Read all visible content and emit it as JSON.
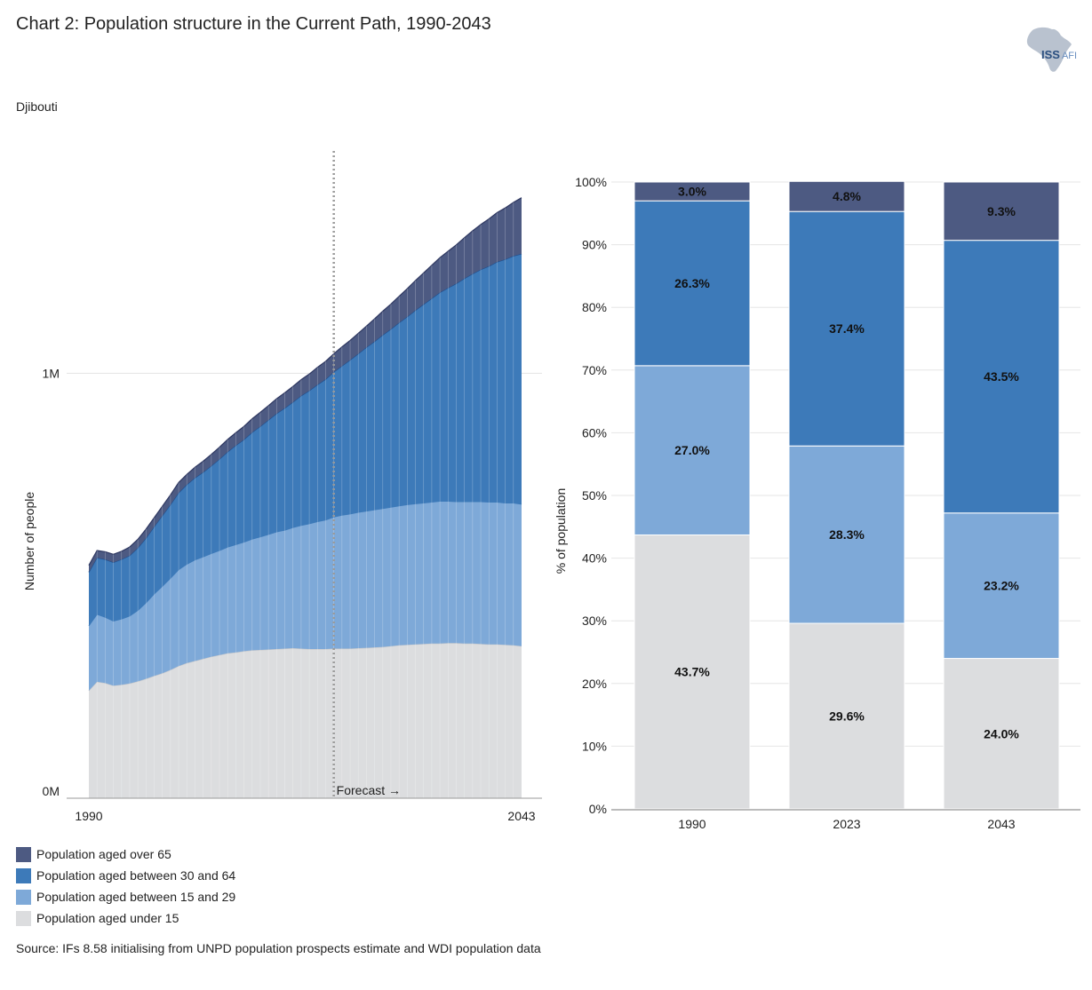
{
  "header": {
    "title": "Chart 2: Population structure in the Current Path, 1990-2043",
    "subtitle": "Djibouti",
    "logo_text": "ISS",
    "logo_suffix": "AFI"
  },
  "colors": {
    "over65": "#4d5a82",
    "age30_64": "#3d7ab9",
    "age15_29": "#7ea9d8",
    "under15": "#dcdddf"
  },
  "legend": [
    {
      "label": "Population aged over 65",
      "color": "#4d5a82"
    },
    {
      "label": "Population aged between 30 and 64",
      "color": "#3d7ab9"
    },
    {
      "label": "Population aged between 15 and 29",
      "color": "#7ea9d8"
    },
    {
      "label": "Population aged under 15",
      "color": "#dcdddf"
    }
  ],
  "source": "Source: IFs 8.58 initialising from UNPD population prospects estimate and WDI population data",
  "chart_data": [
    {
      "type": "area",
      "stacked": true,
      "ylabel": "Number of people",
      "y_ticks": [
        "0M",
        "1M"
      ],
      "x_tick_labels": [
        "1990",
        "2043"
      ],
      "ylim": [
        0,
        1450000
      ],
      "forecast_start_year": 2020,
      "forecast_label": "Forecast →",
      "x": [
        1990,
        1991,
        1992,
        1993,
        1994,
        1995,
        1996,
        1997,
        1998,
        1999,
        2000,
        2001,
        2002,
        2003,
        2004,
        2005,
        2006,
        2007,
        2008,
        2009,
        2010,
        2011,
        2012,
        2013,
        2014,
        2015,
        2016,
        2017,
        2018,
        2019,
        2020,
        2021,
        2022,
        2023,
        2024,
        2025,
        2026,
        2027,
        2028,
        2029,
        2030,
        2031,
        2032,
        2033,
        2034,
        2035,
        2036,
        2037,
        2038,
        2039,
        2040,
        2041,
        2042,
        2043
      ],
      "series": [
        {
          "name": "Population aged under 15",
          "values": [
            253000,
            274000,
            271000,
            265000,
            267000,
            270000,
            275000,
            281000,
            288000,
            294000,
            302000,
            311000,
            318000,
            323000,
            328000,
            333000,
            337000,
            341000,
            343000,
            346000,
            348000,
            349000,
            350000,
            351000,
            352000,
            353000,
            352000,
            351000,
            351000,
            351000,
            352000,
            352000,
            352000,
            353000,
            354000,
            355000,
            356000,
            358000,
            360000,
            361000,
            362000,
            363000,
            364000,
            364000,
            365000,
            365000,
            364000,
            364000,
            363000,
            362000,
            362000,
            361000,
            360000,
            358000
          ]
        },
        {
          "name": "Population aged between 15 and 29",
          "values": [
            153000,
            159000,
            155000,
            152000,
            155000,
            159000,
            167000,
            179000,
            193000,
            205000,
            216000,
            227000,
            233000,
            238000,
            240000,
            243000,
            246000,
            250000,
            254000,
            257000,
            262000,
            266000,
            271000,
            276000,
            279000,
            284000,
            290000,
            295000,
            300000,
            304000,
            310000,
            314000,
            317000,
            320000,
            322000,
            324000,
            326000,
            327000,
            328000,
            330000,
            331000,
            332000,
            333000,
            335000,
            334000,
            333000,
            334000,
            334000,
            335000,
            335000,
            335000,
            334000,
            335000,
            334000
          ]
        },
        {
          "name": "Population aged between 30 and 64",
          "values": [
            126000,
            133000,
            136000,
            138000,
            140000,
            142000,
            147000,
            152000,
            158000,
            166000,
            173000,
            181000,
            187000,
            193000,
            199000,
            206000,
            215000,
            224000,
            233000,
            241000,
            251000,
            260000,
            269000,
            278000,
            287000,
            295000,
            305000,
            313000,
            322000,
            331000,
            341000,
            351000,
            362000,
            373000,
            385000,
            396000,
            408000,
            419000,
            431000,
            442000,
            455000,
            467000,
            479000,
            491000,
            502000,
            513000,
            525000,
            536000,
            546000,
            555000,
            565000,
            573000,
            581000,
            589000
          ]
        },
        {
          "name": "Population aged over 65",
          "values": [
            16000,
            17000,
            18000,
            19000,
            19000,
            20000,
            20000,
            21000,
            21000,
            22000,
            23000,
            24000,
            24000,
            25000,
            26000,
            27000,
            28000,
            29000,
            30000,
            31000,
            32000,
            33000,
            34000,
            35000,
            36000,
            37000,
            38000,
            39000,
            41000,
            42000,
            43000,
            45000,
            46000,
            48000,
            50000,
            53000,
            56000,
            59000,
            62000,
            66000,
            70000,
            74000,
            78000,
            82000,
            86000,
            91000,
            96000,
            101000,
            106000,
            111000,
            116000,
            121000,
            126000,
            132000
          ]
        }
      ]
    },
    {
      "type": "bar",
      "stacked": true,
      "percent": true,
      "ylabel": "% of population",
      "y_ticks": [
        "0%",
        "10%",
        "20%",
        "30%",
        "40%",
        "50%",
        "60%",
        "70%",
        "80%",
        "90%",
        "100%"
      ],
      "categories": [
        "1990",
        "2023",
        "2043"
      ],
      "series": [
        {
          "name": "Population aged under 15",
          "values": [
            43.7,
            29.6,
            24.0
          ],
          "labels": [
            "43.7%",
            "29.6%",
            "24.0%"
          ]
        },
        {
          "name": "Population aged between 15 and 29",
          "values": [
            27.0,
            28.3,
            23.2
          ],
          "labels": [
            "27.0%",
            "28.3%",
            "23.2%"
          ]
        },
        {
          "name": "Population aged between 30 and 64",
          "values": [
            26.3,
            37.4,
            43.5
          ],
          "labels": [
            "26.3%",
            "37.4%",
            "43.5%"
          ]
        },
        {
          "name": "Population aged over 65",
          "values": [
            3.0,
            4.8,
            9.3
          ],
          "labels": [
            "3.0%",
            "4.8%",
            "9.3%"
          ]
        }
      ]
    }
  ]
}
